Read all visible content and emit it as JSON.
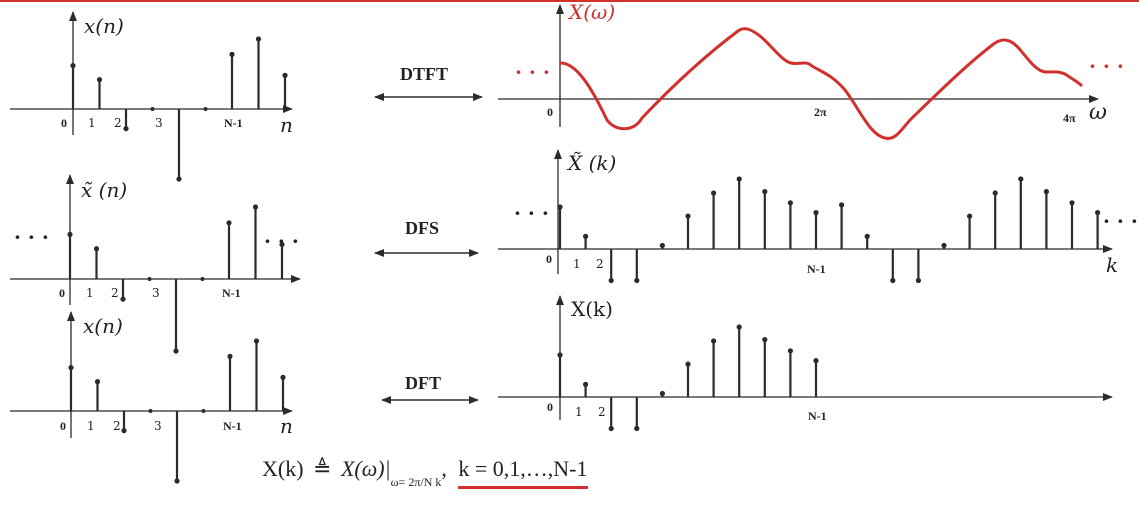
{
  "colors": {
    "accent": "#d0312d",
    "ink": "#2b2b2b",
    "top_rule": "#d0312d"
  },
  "transforms": {
    "dtft": "DTFT",
    "dfs": "DFS",
    "dft": "DFT"
  },
  "panels": {
    "x_top": {
      "label": "x(n)",
      "axis_label": "n",
      "ticks": [
        "0",
        "1",
        "2",
        "3",
        "N-1"
      ],
      "values": [
        0.62,
        0.42,
        -0.28,
        0,
        -1.0,
        0,
        0.78,
        1.0,
        0.48
      ]
    },
    "x_periodic": {
      "label": "x̃ (n)",
      "ellipsis_left": "· · ·",
      "ellipsis_right": "· · ·",
      "ticks": [
        "0",
        "1",
        "2",
        "3",
        "N-1"
      ],
      "values": [
        0.62,
        0.42,
        -0.28,
        0,
        -1.0,
        0,
        0.78,
        1.0,
        0.48
      ]
    },
    "x_bottom": {
      "label": "x(n)",
      "axis_label": "n",
      "ticks": [
        "0",
        "1",
        "2",
        "3",
        "N-1"
      ],
      "values": [
        0.62,
        0.42,
        -0.28,
        0,
        -1.0,
        0,
        0.78,
        1.0,
        0.48
      ]
    },
    "X_omega": {
      "label": "X(ω)",
      "axis_label": "ω",
      "ellipsis_left": "· · ·",
      "ellipsis_right": "· · ·",
      "ticks": [
        "0",
        "2π",
        "4π"
      ]
    },
    "X_tilde_k": {
      "label": "X̃ (k)",
      "axis_label": "k",
      "ellipsis_left": "· · ·",
      "ellipsis_right": "· · ·",
      "ticks": [
        "0",
        "1",
        "2",
        "N-1"
      ],
      "values": [
        0.6,
        0.18,
        -0.45,
        -0.45,
        0.05,
        0.47,
        0.8,
        1.0,
        0.82,
        0.66,
        0.52,
        0.63,
        0.18,
        -0.45,
        -0.45,
        0.05,
        0.47,
        0.8,
        1.0,
        0.82,
        0.66,
        0.52
      ]
    },
    "X_k": {
      "label": "X(k)",
      "ticks": [
        "0",
        "1",
        "2",
        "N-1"
      ],
      "values": [
        0.6,
        0.18,
        -0.45,
        -0.45,
        0.05,
        0.47,
        0.8,
        1.0,
        0.82,
        0.66,
        0.52
      ]
    }
  },
  "formula": {
    "lhs": "X(k)",
    "def_symbol": "≜",
    "mid": "X(ω)|",
    "subscript": "ω= 2π/N k",
    "comma": ",",
    "range": "k = 0,1,…,N-1"
  }
}
